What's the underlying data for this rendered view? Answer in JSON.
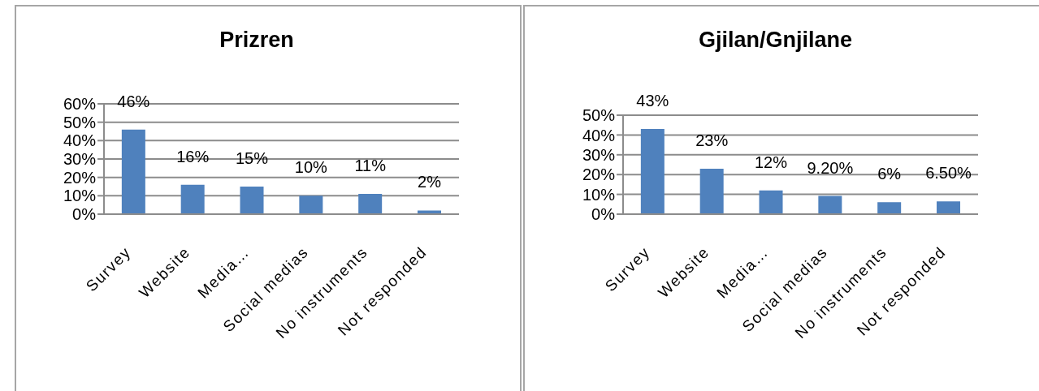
{
  "chart_data": [
    {
      "type": "bar",
      "title": "Prizren",
      "categories": [
        "Survey",
        "Website",
        "Media…",
        "Social medias",
        "No instruments",
        "Not responded"
      ],
      "values": [
        46,
        16,
        15,
        10,
        11,
        2
      ],
      "value_labels": [
        "46%",
        "16%",
        "15%",
        "10%",
        "11%",
        "2%"
      ],
      "color": "#4f81bd",
      "ylim": [
        0,
        60
      ],
      "yticks": [
        {
          "value": 0,
          "label": "0%"
        },
        {
          "value": 10,
          "label": "10%"
        },
        {
          "value": 20,
          "label": "20%"
        },
        {
          "value": 30,
          "label": "30%"
        },
        {
          "value": 40,
          "label": "40%"
        },
        {
          "value": 50,
          "label": "50%"
        },
        {
          "value": 60,
          "label": "60%"
        }
      ],
      "grid": "y"
    },
    {
      "type": "bar",
      "title": "Gjilan/Gnjilane",
      "categories": [
        "Survey",
        "Website",
        "Media…",
        "Social medias",
        "No instruments",
        "Not responded"
      ],
      "values": [
        43,
        23,
        12,
        9.2,
        6,
        6.5
      ],
      "value_labels": [
        "43%",
        "23%",
        "12%",
        "9.20%",
        "6%",
        "6.50%"
      ],
      "color": "#4f81bd",
      "ylim": [
        0,
        50
      ],
      "yticks": [
        {
          "value": 0,
          "label": "0%"
        },
        {
          "value": 10,
          "label": "10%"
        },
        {
          "value": 20,
          "label": "20%"
        },
        {
          "value": 30,
          "label": "30%"
        },
        {
          "value": 40,
          "label": "40%"
        },
        {
          "value": 50,
          "label": "50%"
        }
      ],
      "grid": "y"
    }
  ]
}
